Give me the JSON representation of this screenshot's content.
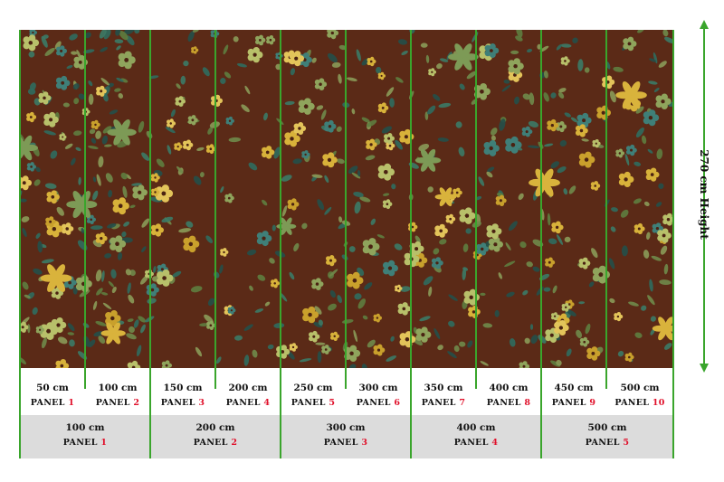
{
  "height_label": "270 cm Height",
  "accent_color": "#3aa52c",
  "number_color": "#e0102a",
  "panels_small": [
    {
      "cm": "50 cm",
      "word": "PANEL",
      "num": "1"
    },
    {
      "cm": "100 cm",
      "word": "PANEL",
      "num": "2"
    },
    {
      "cm": "150 cm",
      "word": "PANEL",
      "num": "3"
    },
    {
      "cm": "200 cm",
      "word": "PANEL",
      "num": "4"
    },
    {
      "cm": "250 cm",
      "word": "PANEL",
      "num": "5"
    },
    {
      "cm": "300 cm",
      "word": "PANEL",
      "num": "6"
    },
    {
      "cm": "350 cm",
      "word": "PANEL",
      "num": "7"
    },
    {
      "cm": "400 cm",
      "word": "PANEL",
      "num": "8"
    },
    {
      "cm": "450 cm",
      "word": "PANEL",
      "num": "9"
    },
    {
      "cm": "500 cm",
      "word": "PANEL",
      "num": "10"
    }
  ],
  "panels_large": [
    {
      "cm": "100 cm",
      "word": "PANEL",
      "num": "1"
    },
    {
      "cm": "200 cm",
      "word": "PANEL",
      "num": "2"
    },
    {
      "cm": "300 cm",
      "word": "PANEL",
      "num": "3"
    },
    {
      "cm": "400 cm",
      "word": "PANEL",
      "num": "4"
    },
    {
      "cm": "500 cm",
      "word": "PANEL",
      "num": "5"
    }
  ]
}
